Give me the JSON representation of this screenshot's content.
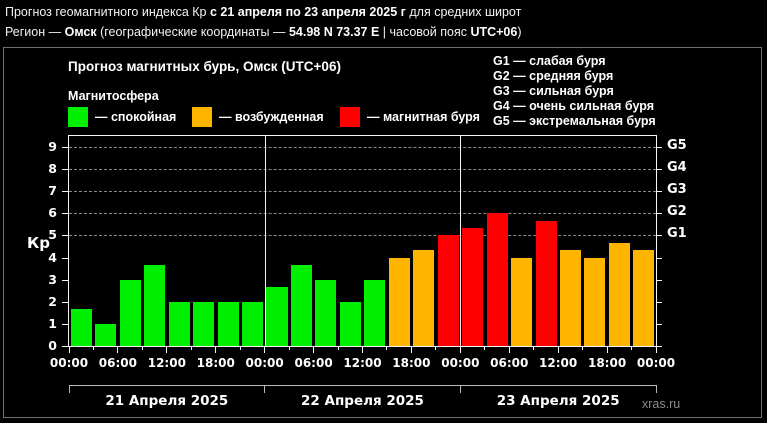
{
  "header": {
    "line1": {
      "pre": "Прогноз геомагнитного индекса Кр ",
      "bold": "с 21 апреля по 23 апреля 2025 г",
      "post": " для средних широт"
    },
    "line2": {
      "pre": "Регион — ",
      "bold1": "Омск",
      "mid1": " (географические координаты — ",
      "bold2": "54.98 N 73.37 E",
      "mid2": " | часовой пояс ",
      "bold3": "UTC+06",
      "post": ")"
    }
  },
  "chart_data": {
    "type": "bar",
    "title": "Прогноз магнитных бурь, Омск (UTC+06)",
    "subtitle": "Магнитосфера",
    "ylabel": "Кр",
    "ylim": [
      0,
      9.5
    ],
    "yticks": [
      0,
      1,
      2,
      3,
      4,
      5,
      6,
      7,
      8,
      9
    ],
    "grid_levels": [
      5,
      6,
      7,
      8,
      9
    ],
    "right_axis": [
      {
        "kp": 5,
        "label": "G1"
      },
      {
        "kp": 6,
        "label": "G2"
      },
      {
        "kp": 7,
        "label": "G3"
      },
      {
        "kp": 8,
        "label": "G4"
      },
      {
        "kp": 9,
        "label": "G5"
      }
    ],
    "x_tick_labels": [
      "00:00",
      "06:00",
      "12:00",
      "18:00",
      "00:00",
      "06:00",
      "12:00",
      "18:00",
      "00:00",
      "06:00",
      "12:00",
      "18:00",
      "00:00"
    ],
    "interval_hours": 3,
    "days": [
      {
        "label": "21 Апреля 2025",
        "values": [
          1.67,
          1,
          3,
          3.67,
          2,
          2,
          2,
          2
        ]
      },
      {
        "label": "22 Апреля 2025",
        "values": [
          2.67,
          3.67,
          3,
          2,
          3,
          4,
          4.33,
          5
        ]
      },
      {
        "label": "23 Апреля 2025",
        "values": [
          5.33,
          6,
          4,
          5.67,
          4.33,
          4,
          4.67,
          4.33
        ]
      }
    ],
    "color_rules": {
      "active_min": 4,
      "storm_min": 5
    },
    "colors": {
      "quiet": "#00ee00",
      "active": "#ffb400",
      "storm": "#fe0000",
      "axis": "#f5f5f5",
      "grid": "#8a8a8a",
      "bracket": "#b8b8b8"
    },
    "legend": [
      {
        "key": "quiet",
        "label": "— спокойная"
      },
      {
        "key": "active",
        "label": "— возбужденная"
      },
      {
        "key": "storm",
        "label": "— магнитная буря"
      }
    ],
    "g_legend": [
      "G1 — слабая буря",
      "G2 — средняя буря",
      "G3 — сильная буря",
      "G4 — очень сильная буря",
      "G5 — экстремальная буря"
    ]
  },
  "footer": {
    "watermark": "xras.ru"
  }
}
